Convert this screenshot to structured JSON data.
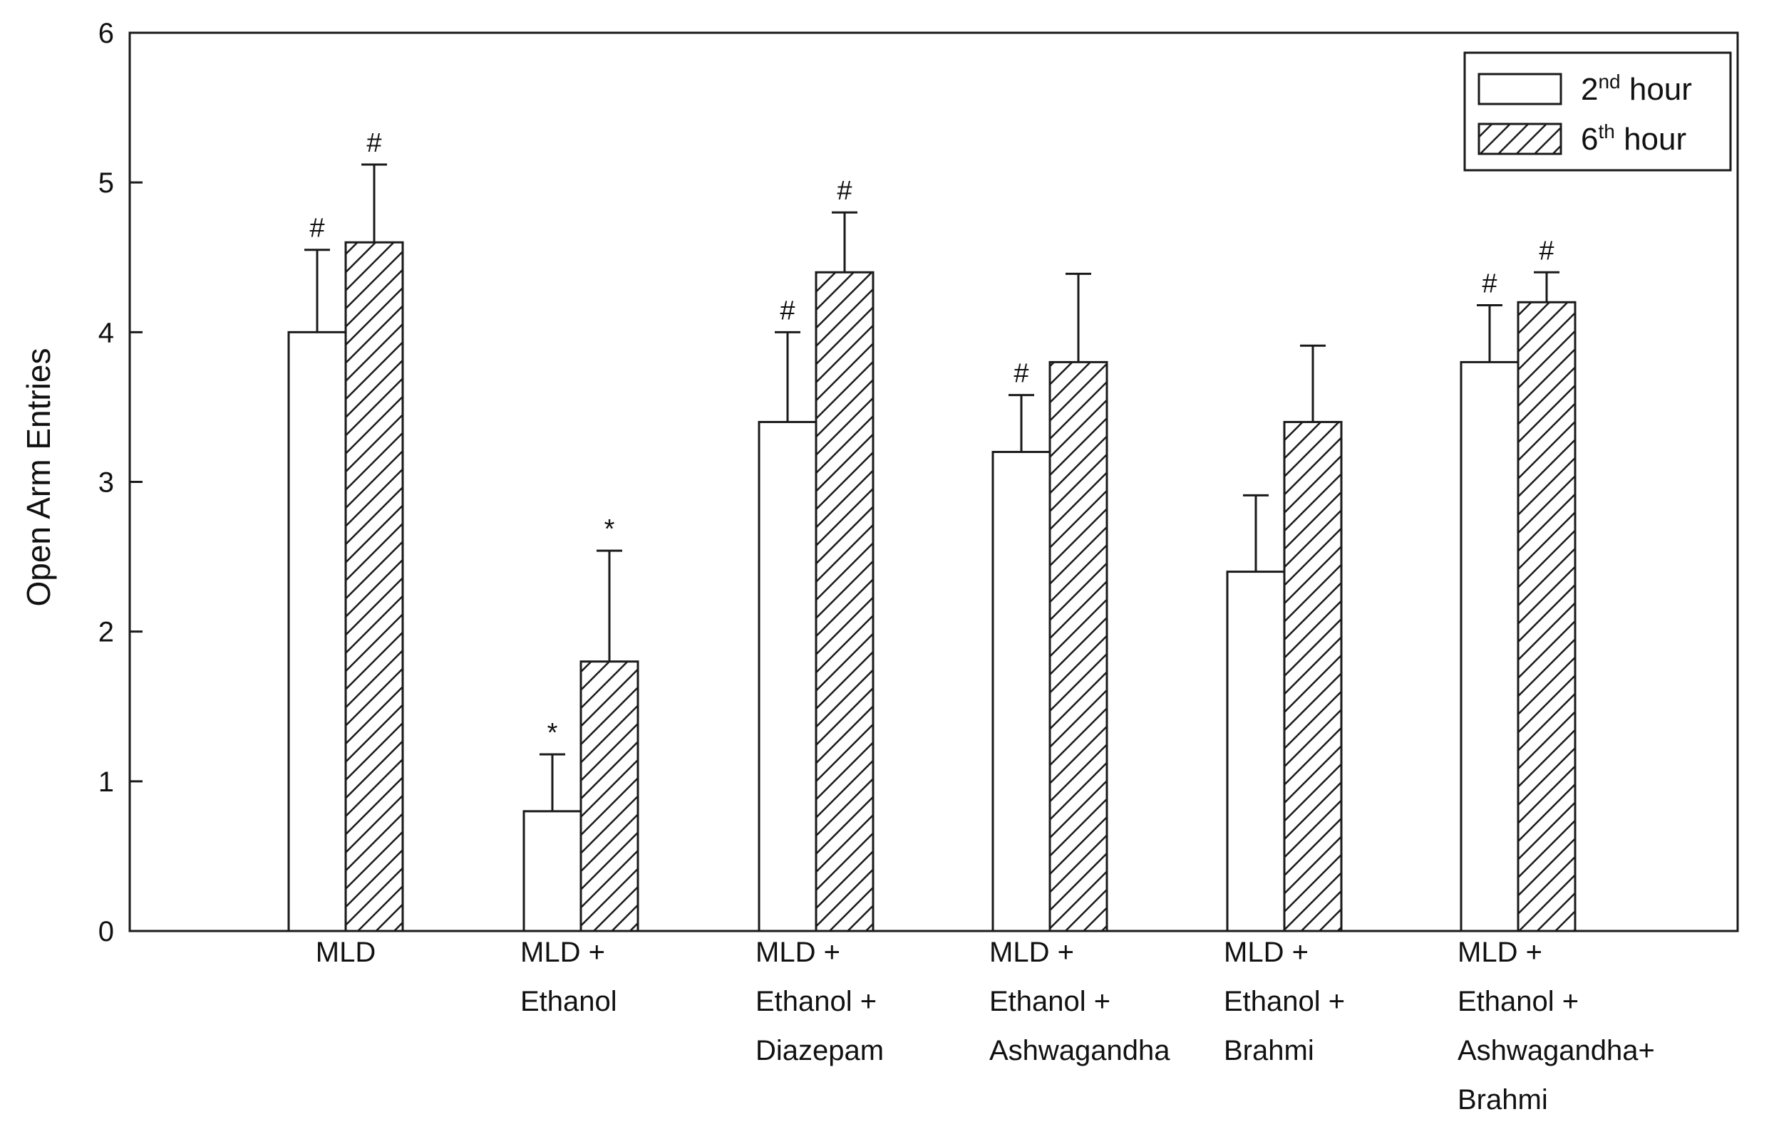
{
  "chart_data": {
    "type": "bar",
    "title": "",
    "xlabel": "",
    "ylabel": "Open Arm Entries",
    "ylim": [
      0,
      6
    ],
    "yticks": [
      "0",
      "1",
      "2",
      "3",
      "4",
      "5",
      "6"
    ],
    "grid": false,
    "legend_position": "top-right",
    "categories": [
      [
        "MLD"
      ],
      [
        "MLD +",
        "Ethanol"
      ],
      [
        "MLD +",
        "Ethanol +",
        "Diazepam"
      ],
      [
        "MLD +",
        "Ethanol +",
        "Ashwagandha"
      ],
      [
        "MLD +",
        "Ethanol +",
        "Brahmi"
      ],
      [
        "MLD +",
        "Ethanol +",
        "Ashwagandha+",
        "Brahmi"
      ]
    ],
    "series": [
      {
        "name": "2nd hour",
        "legend_base": "2",
        "legend_sup": "nd",
        "legend_rest": " hour",
        "fill": "white",
        "values": [
          4.0,
          0.8,
          3.4,
          3.2,
          2.4,
          3.8
        ],
        "errors": [
          0.55,
          0.38,
          0.6,
          0.38,
          0.51,
          0.38
        ],
        "annotations": [
          "#",
          "*",
          "#",
          "#",
          "",
          "#"
        ]
      },
      {
        "name": "6th hour",
        "legend_base": "6",
        "legend_sup": "th",
        "legend_rest": " hour",
        "fill": "hatched",
        "values": [
          4.6,
          1.8,
          4.4,
          3.8,
          3.4,
          4.2
        ],
        "errors": [
          0.52,
          0.74,
          0.4,
          0.59,
          0.51,
          0.2
        ],
        "annotations": [
          "#",
          "*",
          "#",
          "",
          "",
          "#"
        ]
      }
    ]
  },
  "colors": {
    "line": "#1a1a1a",
    "bar_fill": "#ffffff",
    "hatch": "#1a1a1a"
  }
}
